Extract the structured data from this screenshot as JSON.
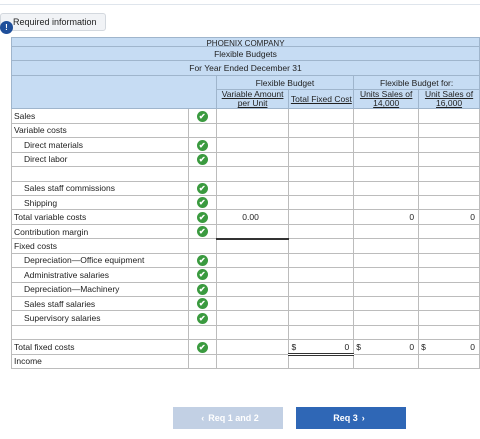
{
  "required_tab": {
    "label": "Required information",
    "icon": "info-icon"
  },
  "table": {
    "company_name": "PHOENIX COMPANY",
    "title": "Flexible Budgets",
    "period": "For Year Ended December 31",
    "group_left": "Flexible Budget",
    "group_right": "Flexible Budget for:",
    "col_variable": "Variable Amount per Unit",
    "col_fixed": "Total Fixed Cost",
    "col_14000": "Units Sales of 14,000",
    "col_16000": "Unit Sales of 16,000",
    "rows": {
      "sales": "Sales",
      "variable_costs": "Variable costs",
      "direct_materials": "Direct materials",
      "direct_labor": "Direct labor",
      "sales_staff_commissions": "Sales staff commissions",
      "shipping": "Shipping",
      "total_variable_costs": "Total variable costs",
      "contribution_margin": "Contribution margin",
      "fixed_costs": "Fixed costs",
      "dep_office": "Depreciation—Office equipment",
      "admin_salaries": "Administrative salaries",
      "dep_machinery": "Depreciation—Machinery",
      "sales_staff_salaries": "Sales staff salaries",
      "supervisory_salaries": "Supervisory salaries",
      "total_fixed_costs": "Total fixed costs",
      "income": "Income"
    },
    "values": {
      "total_variable_per_unit": "0.00",
      "total_variable_14000": "0",
      "total_variable_16000": "0",
      "total_fixed_cost_symbol": "$",
      "total_fixed_cost": "0",
      "total_fixed_14000_symbol": "$",
      "total_fixed_14000": "0",
      "total_fixed_16000_symbol": "$",
      "total_fixed_16000": "0"
    },
    "check_glyph": "✔"
  },
  "nav": {
    "prev_label": "Req 1 and 2",
    "next_label": "Req 3",
    "prev_chevron": "‹",
    "next_chevron": "›"
  },
  "colors": {
    "header_bg": "#c6dcf3",
    "check_green": "#3a9a3f",
    "next_button": "#2f67b6",
    "prev_button": "#c2d0e4",
    "info_blue": "#1f4f9a"
  }
}
